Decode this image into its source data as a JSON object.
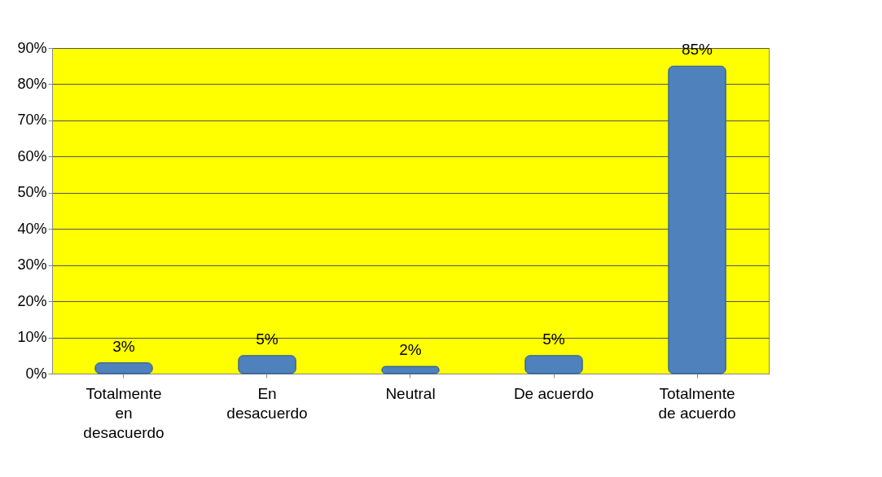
{
  "chart_data": {
    "type": "bar",
    "categories": [
      "Totalmente en desacuerdo",
      "En desacuerdo",
      "Neutral",
      "De acuerdo",
      "Totalmente de acuerdo"
    ],
    "values": [
      3,
      5,
      2,
      5,
      85
    ],
    "value_labels": [
      "3%",
      "5%",
      "2%",
      "5%",
      "85%"
    ],
    "color": "#4f81bd",
    "ylim": [
      0,
      90
    ],
    "yticks": [
      {
        "value": 0,
        "label": "0%"
      },
      {
        "value": 10,
        "label": "10%"
      },
      {
        "value": 20,
        "label": "20%"
      },
      {
        "value": 30,
        "label": "30%"
      },
      {
        "value": 40,
        "label": "40%"
      },
      {
        "value": 50,
        "label": "50%"
      },
      {
        "value": 60,
        "label": "60%"
      },
      {
        "value": 70,
        "label": "70%"
      },
      {
        "value": 80,
        "label": "80%"
      },
      {
        "value": 90,
        "label": "90%"
      }
    ],
    "grid": "y"
  }
}
